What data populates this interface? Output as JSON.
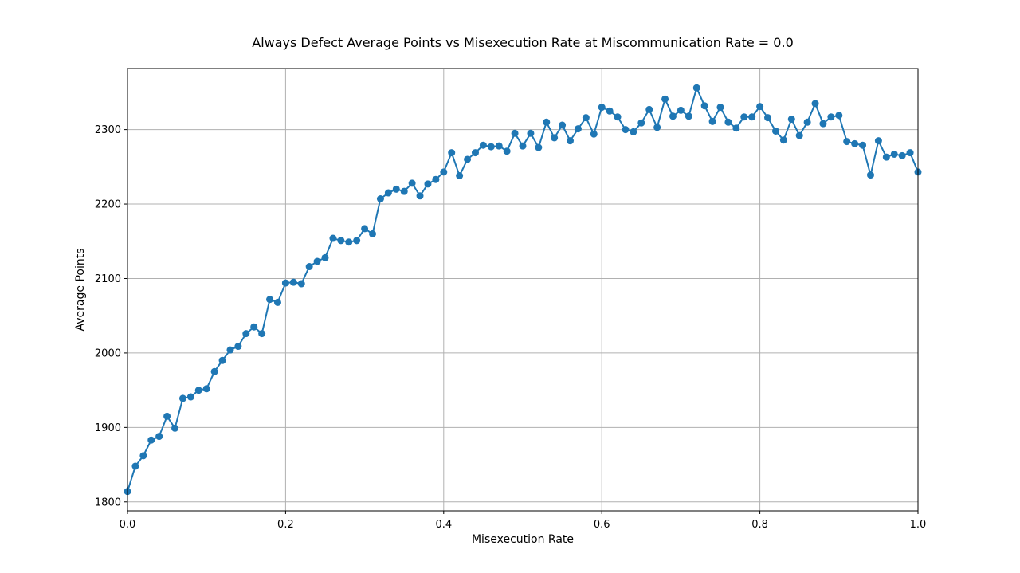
{
  "chart_data": {
    "type": "line",
    "title": "Always Defect Average Points vs Misexecution Rate at Miscommunication Rate = 0.0",
    "xlabel": "Misexecution Rate",
    "ylabel": "Average Points",
    "xlim": [
      0.0,
      1.0
    ],
    "ylim": [
      1788,
      2382
    ],
    "x_ticks": [
      "0.0",
      "0.2",
      "0.4",
      "0.6",
      "0.8",
      "1.0"
    ],
    "y_ticks": [
      "1800",
      "1900",
      "2000",
      "2100",
      "2200",
      "2300"
    ],
    "grid": true,
    "marker": "circle",
    "color": "#1f77b4",
    "x": [
      0.0,
      0.01,
      0.02,
      0.03,
      0.04,
      0.05,
      0.06,
      0.07,
      0.08,
      0.09,
      0.1,
      0.11,
      0.12,
      0.13,
      0.14,
      0.15,
      0.16,
      0.17,
      0.18,
      0.19,
      0.2,
      0.21,
      0.22,
      0.23,
      0.24,
      0.25,
      0.26,
      0.27,
      0.28,
      0.29,
      0.3,
      0.31,
      0.32,
      0.33,
      0.34,
      0.35,
      0.36,
      0.37,
      0.38,
      0.39,
      0.4,
      0.41,
      0.42,
      0.43,
      0.44,
      0.45,
      0.46,
      0.47,
      0.48,
      0.49,
      0.5,
      0.51,
      0.52,
      0.53,
      0.54,
      0.55,
      0.56,
      0.57,
      0.58,
      0.59,
      0.6,
      0.61,
      0.62,
      0.63,
      0.64,
      0.65,
      0.66,
      0.67,
      0.68,
      0.69,
      0.7,
      0.71,
      0.72,
      0.73,
      0.74,
      0.75,
      0.76,
      0.77,
      0.78,
      0.79,
      0.8,
      0.81,
      0.82,
      0.83,
      0.84,
      0.85,
      0.86,
      0.87,
      0.88,
      0.89,
      0.9,
      0.91,
      0.92,
      0.93,
      0.94,
      0.95,
      0.96,
      0.97,
      0.98,
      0.99,
      1.0
    ],
    "y": [
      1814,
      1848,
      1862,
      1883,
      1888,
      1915,
      1899,
      1939,
      1941,
      1950,
      1952,
      1975,
      1990,
      2004,
      2009,
      2026,
      2035,
      2026,
      2072,
      2068,
      2094,
      2095,
      2093,
      2116,
      2123,
      2128,
      2154,
      2151,
      2149,
      2151,
      2167,
      2160,
      2207,
      2215,
      2220,
      2217,
      2228,
      2211,
      2227,
      2233,
      2243,
      2269,
      2238,
      2260,
      2269,
      2279,
      2277,
      2278,
      2271,
      2295,
      2278,
      2295,
      2276,
      2310,
      2289,
      2306,
      2285,
      2301,
      2316,
      2294,
      2330,
      2325,
      2317,
      2300,
      2297,
      2309,
      2327,
      2303,
      2341,
      2318,
      2326,
      2318,
      2356,
      2332,
      2311,
      2330,
      2310,
      2302,
      2317,
      2317,
      2331,
      2316,
      2298,
      2286,
      2314,
      2292,
      2310,
      2335,
      2308,
      2317,
      2319,
      2284,
      2281,
      2279,
      2239,
      2285,
      2263,
      2267,
      2265,
      2269,
      2243
    ]
  }
}
